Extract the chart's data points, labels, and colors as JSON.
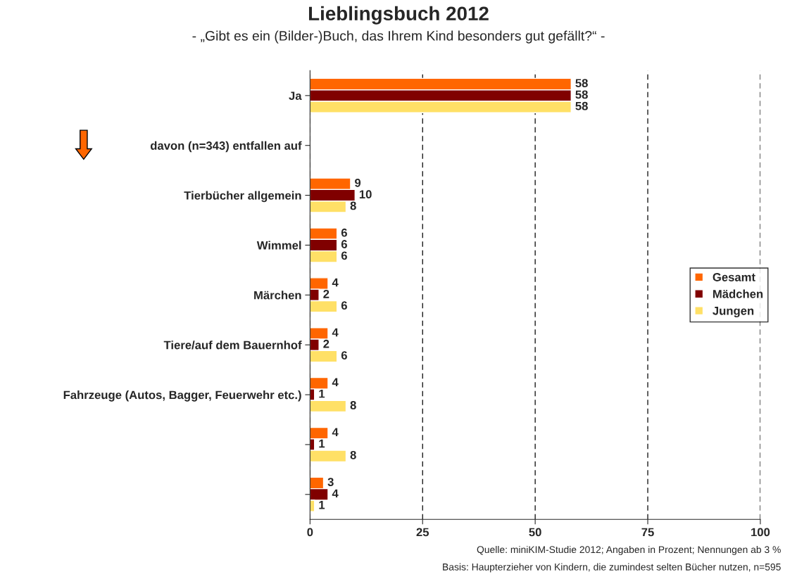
{
  "chart_data": {
    "type": "bar",
    "orientation": "horizontal",
    "title": "Lieblingsbuch 2012",
    "subtitle": "- „Gibt es ein (Bilder-)Buch, das Ihrem Kind besonders gut gefällt?“ -",
    "categories": [
      "Ja",
      "davon (n=343) entfallen auf",
      "Tierbücher allgemein",
      "Wimmel",
      "Märchen",
      "Tiere/auf dem Bauernhof",
      "Fahrzeuge (Autos, Bagger, Feuerwehr etc.)",
      null,
      null
    ],
    "series": [
      {
        "name": "Gesamt",
        "color": "#ff6600",
        "values": [
          58,
          null,
          9,
          6,
          4,
          4,
          4,
          4,
          3
        ]
      },
      {
        "name": "Mädchen",
        "color": "#800000",
        "values": [
          58,
          null,
          10,
          6,
          2,
          2,
          1,
          1,
          4
        ]
      },
      {
        "name": "Jungen",
        "color": "#ffe066",
        "values": [
          58,
          null,
          8,
          6,
          6,
          6,
          8,
          8,
          1
        ]
      }
    ],
    "xlim": [
      0,
      100
    ],
    "xticks": [
      0,
      25,
      50,
      75,
      100
    ],
    "grid": "x",
    "legend": "right",
    "data_labels": true,
    "annotations": [
      "Quelle: miniKIM-Studie 2012; Angaben in Prozent; Nennungen ab 3 %",
      "Basis: Haupterzieher von Kindern, die zumindest selten Bücher nutzen, n=595"
    ]
  }
}
